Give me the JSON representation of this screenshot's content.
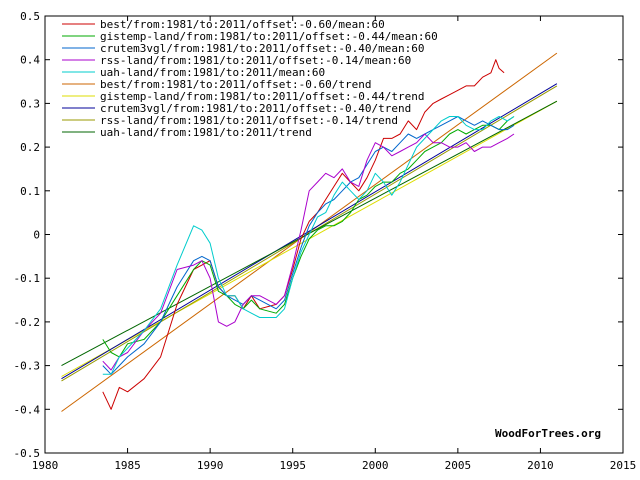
{
  "chart_data": {
    "type": "line",
    "title": "",
    "xlabel": "",
    "ylabel": "",
    "xlim": [
      1980,
      2015
    ],
    "ylim": [
      -0.5,
      0.5
    ],
    "x_ticks": [
      1980,
      1985,
      1990,
      1995,
      2000,
      2005,
      2010,
      2015
    ],
    "x_tick_labels": [
      "1980",
      "1985",
      "1990",
      "1995",
      "2000",
      "2005",
      "2010",
      "2015"
    ],
    "y_ticks": [
      -0.5,
      -0.4,
      -0.3,
      -0.2,
      -0.1,
      0,
      0.1,
      0.2,
      0.3,
      0.4,
      0.5
    ],
    "y_tick_labels": [
      "-0.5",
      "-0.4",
      "-0.3",
      "-0.2",
      "-0.1",
      "0",
      "0.1",
      "0.2",
      "0.3",
      "0.4",
      "0.5"
    ],
    "grid": false,
    "legend_position": "top-left",
    "watermark": "WoodForTrees.org",
    "series": [
      {
        "name": "best/from:1981/to:2011/offset:-0.60/mean:60",
        "color": "#cc0000",
        "kind": "line",
        "x": [
          1983.5,
          1984.0,
          1984.5,
          1985.0,
          1986.0,
          1987.0,
          1988.0,
          1989.0,
          1989.5,
          1990.0,
          1990.5,
          1991.0,
          1991.5,
          1992.0,
          1992.5,
          1993.0,
          1994.0,
          1994.5,
          1995.0,
          1995.5,
          1996.0,
          1996.5,
          1997.0,
          1997.5,
          1998.0,
          1998.5,
          1999.0,
          1999.5,
          2000.0,
          2000.5,
          2001.0,
          2001.5,
          2002.0,
          2002.5,
          2003.0,
          2003.5,
          2004.0,
          2004.5,
          2005.0,
          2005.5,
          2006.0,
          2006.5,
          2007.0,
          2007.3,
          2007.5,
          2007.8
        ],
        "y": [
          -0.36,
          -0.4,
          -0.35,
          -0.36,
          -0.33,
          -0.28,
          -0.16,
          -0.08,
          -0.07,
          -0.06,
          -0.12,
          -0.14,
          -0.14,
          -0.17,
          -0.14,
          -0.17,
          -0.16,
          -0.14,
          -0.08,
          -0.01,
          0.03,
          0.05,
          0.08,
          0.11,
          0.14,
          0.12,
          0.1,
          0.13,
          0.17,
          0.22,
          0.22,
          0.23,
          0.26,
          0.24,
          0.28,
          0.3,
          0.31,
          0.32,
          0.33,
          0.34,
          0.34,
          0.36,
          0.37,
          0.4,
          0.38,
          0.37
        ]
      },
      {
        "name": "gistemp-land/from:1981/to:2011/offset:-0.44/mean:60",
        "color": "#00aa00",
        "kind": "line",
        "x": [
          1983.5,
          1984.0,
          1984.5,
          1985.0,
          1986.0,
          1987.0,
          1988.0,
          1989.0,
          1989.5,
          1990.0,
          1990.5,
          1991.0,
          1991.5,
          1992.0,
          1992.5,
          1993.0,
          1994.0,
          1994.5,
          1995.0,
          1995.5,
          1996.0,
          1996.5,
          1997.0,
          1997.5,
          1998.0,
          1998.5,
          1999.0,
          1999.5,
          2000.0,
          2000.5,
          2001.0,
          2001.5,
          2002.0,
          2002.5,
          2003.0,
          2003.5,
          2004.0,
          2004.5,
          2005.0,
          2005.5,
          2006.0,
          2006.5,
          2007.0,
          2007.5,
          2008.0,
          2008.4
        ],
        "y": [
          -0.24,
          -0.27,
          -0.28,
          -0.25,
          -0.24,
          -0.2,
          -0.14,
          -0.08,
          -0.06,
          -0.07,
          -0.13,
          -0.14,
          -0.16,
          -0.17,
          -0.15,
          -0.17,
          -0.18,
          -0.16,
          -0.1,
          -0.05,
          -0.01,
          0.01,
          0.02,
          0.02,
          0.03,
          0.05,
          0.08,
          0.09,
          0.11,
          0.12,
          0.12,
          0.14,
          0.15,
          0.17,
          0.19,
          0.2,
          0.21,
          0.23,
          0.24,
          0.23,
          0.24,
          0.25,
          0.25,
          0.24,
          0.26,
          0.27
        ]
      },
      {
        "name": "crutem3vgl/from:1981/to:2011/offset:-0.40/mean:60",
        "color": "#0066cc",
        "kind": "line",
        "x": [
          1983.5,
          1984.0,
          1984.5,
          1985.0,
          1986.0,
          1987.0,
          1988.0,
          1989.0,
          1989.5,
          1990.0,
          1990.5,
          1991.0,
          1991.5,
          1992.0,
          1992.5,
          1993.0,
          1994.0,
          1994.5,
          1995.0,
          1995.5,
          1996.0,
          1996.5,
          1997.0,
          1997.5,
          1998.0,
          1998.5,
          1999.0,
          1999.5,
          2000.0,
          2000.5,
          2001.0,
          2001.5,
          2002.0,
          2002.5,
          2003.0,
          2003.5,
          2004.0,
          2004.5,
          2005.0,
          2005.5,
          2006.0,
          2006.5,
          2007.0,
          2007.5,
          2008.0,
          2008.4
        ],
        "y": [
          -0.3,
          -0.32,
          -0.3,
          -0.28,
          -0.25,
          -0.2,
          -0.12,
          -0.06,
          -0.05,
          -0.06,
          -0.12,
          -0.14,
          -0.15,
          -0.16,
          -0.14,
          -0.15,
          -0.17,
          -0.15,
          -0.09,
          -0.03,
          0.02,
          0.05,
          0.07,
          0.08,
          0.1,
          0.12,
          0.13,
          0.16,
          0.19,
          0.2,
          0.19,
          0.21,
          0.23,
          0.22,
          0.23,
          0.24,
          0.25,
          0.26,
          0.27,
          0.26,
          0.25,
          0.26,
          0.25,
          0.24,
          0.24,
          0.25
        ]
      },
      {
        "name": "rss-land/from:1981/to:2011/offset:-0.14/mean:60",
        "color": "#aa00cc",
        "kind": "line",
        "x": [
          1983.5,
          1984.0,
          1984.5,
          1985.0,
          1986.0,
          1987.0,
          1988.0,
          1989.0,
          1989.5,
          1990.0,
          1990.5,
          1991.0,
          1991.5,
          1992.0,
          1992.5,
          1993.0,
          1994.0,
          1994.5,
          1995.0,
          1995.5,
          1996.0,
          1996.5,
          1997.0,
          1997.5,
          1998.0,
          1998.5,
          1999.0,
          1999.5,
          2000.0,
          2000.5,
          2001.0,
          2001.5,
          2002.0,
          2002.5,
          2003.0,
          2003.5,
          2004.0,
          2004.5,
          2005.0,
          2005.5,
          2006.0,
          2006.5,
          2007.0,
          2007.5,
          2008.0,
          2008.4
        ],
        "y": [
          -0.29,
          -0.31,
          -0.28,
          -0.27,
          -0.22,
          -0.18,
          -0.08,
          -0.07,
          -0.06,
          -0.1,
          -0.2,
          -0.21,
          -0.2,
          -0.16,
          -0.14,
          -0.14,
          -0.16,
          -0.14,
          -0.07,
          0.01,
          0.1,
          0.12,
          0.14,
          0.13,
          0.15,
          0.12,
          0.11,
          0.17,
          0.21,
          0.2,
          0.18,
          0.19,
          0.2,
          0.21,
          0.23,
          0.21,
          0.21,
          0.2,
          0.2,
          0.21,
          0.19,
          0.2,
          0.2,
          0.21,
          0.22,
          0.23
        ]
      },
      {
        "name": "uah-land/from:1981/to:2011/mean:60",
        "color": "#00cccc",
        "kind": "line",
        "x": [
          1983.5,
          1984.0,
          1984.5,
          1985.0,
          1986.0,
          1987.0,
          1988.0,
          1989.0,
          1989.5,
          1990.0,
          1990.5,
          1991.0,
          1991.5,
          1992.0,
          1992.5,
          1993.0,
          1994.0,
          1994.5,
          1995.0,
          1995.5,
          1996.0,
          1996.5,
          1997.0,
          1997.5,
          1998.0,
          1998.5,
          1999.0,
          1999.5,
          2000.0,
          2000.5,
          2001.0,
          2001.5,
          2002.0,
          2002.5,
          2003.0,
          2003.5,
          2004.0,
          2004.5,
          2005.0,
          2005.5,
          2006.0,
          2006.5,
          2007.0,
          2007.5,
          2008.0,
          2008.4
        ],
        "y": [
          -0.32,
          -0.32,
          -0.28,
          -0.26,
          -0.22,
          -0.17,
          -0.07,
          0.02,
          0.01,
          -0.02,
          -0.1,
          -0.14,
          -0.14,
          -0.17,
          -0.18,
          -0.19,
          -0.19,
          -0.17,
          -0.1,
          -0.04,
          0.0,
          0.04,
          0.05,
          0.09,
          0.12,
          0.1,
          0.08,
          0.1,
          0.14,
          0.12,
          0.09,
          0.12,
          0.16,
          0.2,
          0.22,
          0.24,
          0.26,
          0.27,
          0.27,
          0.25,
          0.24,
          0.24,
          0.26,
          0.27,
          0.26,
          0.27
        ]
      },
      {
        "name": "best/from:1981/to:2011/offset:-0.60/trend",
        "color": "#cc6600",
        "kind": "trend",
        "x": [
          1981,
          2011
        ],
        "y": [
          -0.405,
          0.415
        ]
      },
      {
        "name": "gistemp-land/from:1981/to:2011/offset:-0.44/trend",
        "color": "#dddd00",
        "kind": "trend",
        "x": [
          1981,
          2011
        ],
        "y": [
          -0.325,
          0.305
        ]
      },
      {
        "name": "crutem3vgl/from:1981/to:2011/offset:-0.40/trend",
        "color": "#000099",
        "kind": "trend",
        "x": [
          1981,
          2011
        ],
        "y": [
          -0.33,
          0.345
        ]
      },
      {
        "name": "rss-land/from:1981/to:2011/offset:-0.14/trend",
        "color": "#999900",
        "kind": "trend",
        "x": [
          1981,
          2011
        ],
        "y": [
          -0.335,
          0.34
        ]
      },
      {
        "name": "uah-land/from:1981/to:2011/trend",
        "color": "#006600",
        "kind": "trend",
        "x": [
          1981,
          2011
        ],
        "y": [
          -0.3,
          0.305
        ]
      }
    ]
  }
}
